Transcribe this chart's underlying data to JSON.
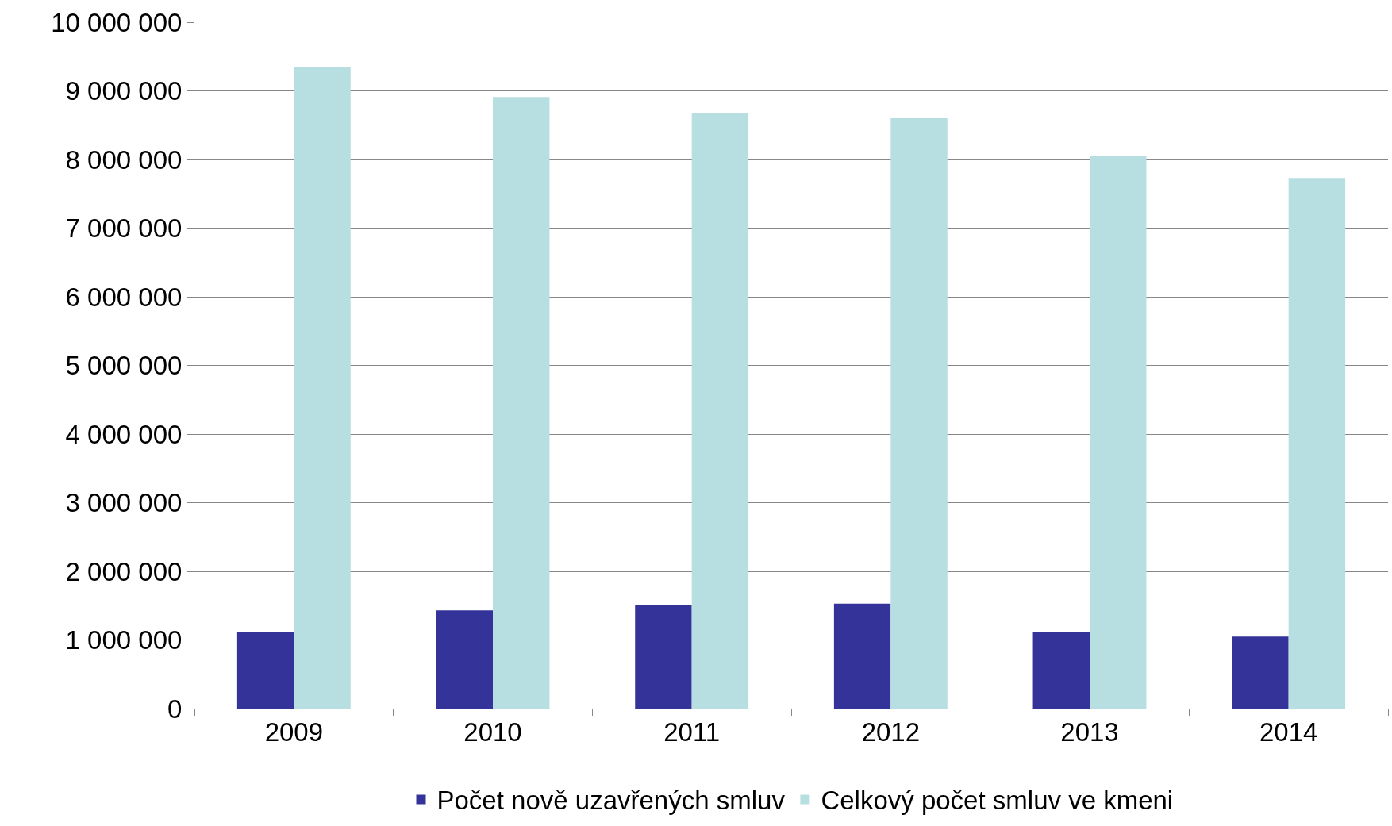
{
  "chart_data": {
    "type": "bar",
    "categories": [
      "2009",
      "2010",
      "2011",
      "2012",
      "2013",
      "2014"
    ],
    "series": [
      {
        "name": "Počet nově uzavřených smluv",
        "color": "#333399",
        "values": [
          1120000,
          1430000,
          1510000,
          1530000,
          1120000,
          1050000
        ]
      },
      {
        "name": "Celkový počet smluv ve kmeni",
        "color": "#b7dfe2",
        "values": [
          9340000,
          8910000,
          8670000,
          8600000,
          8050000,
          7730000
        ]
      }
    ],
    "ylim": [
      0,
      10000000
    ],
    "yticks": [
      0,
      {
        "value": 1000000,
        "label": "1 000 000"
      },
      {
        "value": 2000000,
        "label": "2 000 000"
      },
      {
        "value": 3000000,
        "label": "3 000 000"
      },
      {
        "value": 4000000,
        "label": "4 000 000"
      },
      {
        "value": 5000000,
        "label": "5 000 000"
      },
      {
        "value": 6000000,
        "label": "6 000 000"
      },
      {
        "value": 7000000,
        "label": "7 000 000"
      },
      {
        "value": 8000000,
        "label": "8 000 000"
      },
      {
        "value": 9000000,
        "label": "9 000 000"
      },
      {
        "value": 10000000,
        "label": "10 000 000"
      }
    ],
    "grid": "y",
    "legend": "bottom"
  }
}
